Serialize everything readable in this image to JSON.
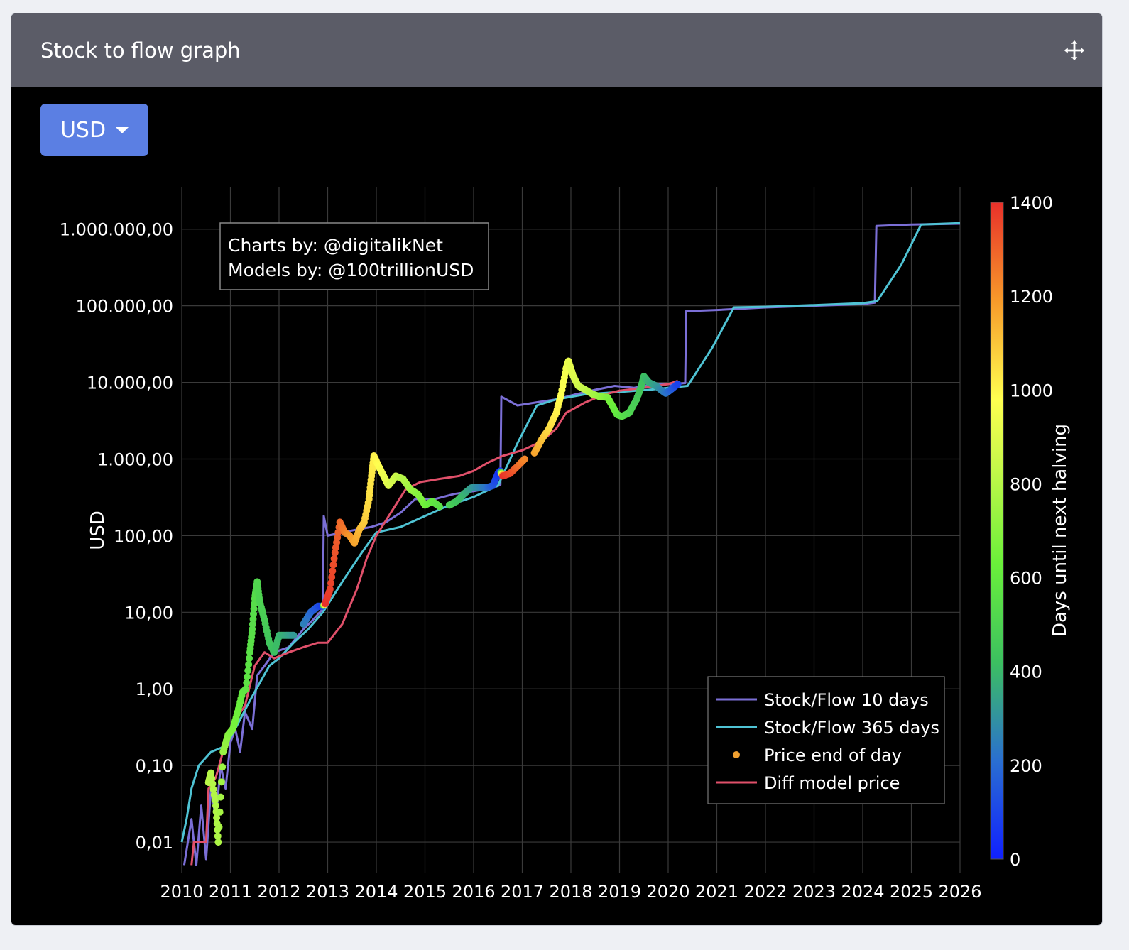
{
  "header": {
    "title": "Stock to flow graph",
    "move_icon": "move-arrows-icon"
  },
  "currency": {
    "selected": "USD",
    "options": [
      "USD"
    ]
  },
  "colors": {
    "header_bg": "#5b5c67",
    "button_bg": "#5b7fe3",
    "sf10": "#7b6fd6",
    "sf365": "#4fc3d4",
    "diff": "#e0506a",
    "grid": "#3a3a3a"
  },
  "chart_data": {
    "type": "line",
    "ylabel": "USD",
    "y_scale": "log",
    "ylim": [
      0.004,
      3500000
    ],
    "xlim": [
      2010,
      2026
    ],
    "x_ticks": [
      "2010",
      "2011",
      "2012",
      "2013",
      "2014",
      "2015",
      "2016",
      "2017",
      "2018",
      "2019",
      "2020",
      "2021",
      "2022",
      "2023",
      "2024",
      "2025",
      "2026"
    ],
    "y_ticks": [
      {
        "value": 0.01,
        "label": "0,01"
      },
      {
        "value": 0.1,
        "label": "0,10"
      },
      {
        "value": 1,
        "label": "1,00"
      },
      {
        "value": 10,
        "label": "10,00"
      },
      {
        "value": 100,
        "label": "100,00"
      },
      {
        "value": 1000,
        "label": "1.000,00"
      },
      {
        "value": 10000,
        "label": "10.000,00"
      },
      {
        "value": 100000,
        "label": "100.000,00"
      },
      {
        "value": 1000000,
        "label": "1.000.000,00"
      }
    ],
    "annotation": [
      "Charts by: @digitalikNet",
      "Models by: @100trillionUSD"
    ],
    "legend": {
      "placement": "bottom-right",
      "items": [
        "Stock/Flow 10 days",
        "Stock/Flow 365 days",
        "Price end of day",
        "Diff model price"
      ]
    },
    "colorbar": {
      "title": "Days until next halving",
      "range": [
        0,
        1400
      ],
      "ticks": [
        "0",
        "200",
        "400",
        "600",
        "800",
        "1000",
        "1200",
        "1400"
      ]
    },
    "series": [
      {
        "name": "Stock/Flow 10 days",
        "points": [
          [
            2010.05,
            0.005
          ],
          [
            2010.2,
            0.02
          ],
          [
            2010.3,
            0.005
          ],
          [
            2010.4,
            0.03
          ],
          [
            2010.5,
            0.006
          ],
          [
            2010.6,
            0.05
          ],
          [
            2010.7,
            0.02
          ],
          [
            2010.8,
            0.1
          ],
          [
            2010.9,
            0.05
          ],
          [
            2011.0,
            0.2
          ],
          [
            2011.1,
            0.3
          ],
          [
            2011.2,
            0.15
          ],
          [
            2011.3,
            0.5
          ],
          [
            2011.45,
            0.3
          ],
          [
            2011.55,
            1.5
          ],
          [
            2011.7,
            2
          ],
          [
            2011.9,
            3
          ],
          [
            2012.2,
            3.5
          ],
          [
            2012.5,
            6
          ],
          [
            2012.7,
            8
          ],
          [
            2012.9,
            11
          ],
          [
            2012.92,
            180
          ],
          [
            2013.0,
            100
          ],
          [
            2013.3,
            110
          ],
          [
            2013.6,
            120
          ],
          [
            2013.9,
            130
          ],
          [
            2014.2,
            150
          ],
          [
            2014.5,
            200
          ],
          [
            2014.8,
            300
          ],
          [
            2015.2,
            300
          ],
          [
            2015.6,
            350
          ],
          [
            2016.0,
            380
          ],
          [
            2016.4,
            420
          ],
          [
            2016.55,
            460
          ],
          [
            2016.57,
            6500
          ],
          [
            2016.9,
            5000
          ],
          [
            2017.3,
            5500
          ],
          [
            2017.7,
            6000
          ],
          [
            2018.1,
            7000
          ],
          [
            2018.5,
            8000
          ],
          [
            2018.9,
            9000
          ],
          [
            2019.3,
            8500
          ],
          [
            2019.7,
            9500
          ],
          [
            2020.1,
            9500
          ],
          [
            2020.35,
            9800
          ],
          [
            2020.37,
            85000
          ],
          [
            2021.0,
            88000
          ],
          [
            2022.0,
            95000
          ],
          [
            2023.0,
            100000
          ],
          [
            2024.0,
            105000
          ],
          [
            2024.25,
            110000
          ],
          [
            2024.28,
            1100000
          ],
          [
            2025.0,
            1150000
          ],
          [
            2026.0,
            1180000
          ]
        ]
      },
      {
        "name": "Stock/Flow 365 days",
        "points": [
          [
            2010.0,
            0.01
          ],
          [
            2010.1,
            0.02
          ],
          [
            2010.2,
            0.05
          ],
          [
            2010.35,
            0.1
          ],
          [
            2010.6,
            0.15
          ],
          [
            2010.9,
            0.18
          ],
          [
            2011.1,
            0.3
          ],
          [
            2011.4,
            0.7
          ],
          [
            2011.8,
            2
          ],
          [
            2012.0,
            2.5
          ],
          [
            2012.3,
            4
          ],
          [
            2012.6,
            6
          ],
          [
            2012.9,
            10
          ],
          [
            2013.3,
            25
          ],
          [
            2013.7,
            60
          ],
          [
            2014.0,
            110
          ],
          [
            2014.5,
            130
          ],
          [
            2015.0,
            180
          ],
          [
            2015.5,
            250
          ],
          [
            2016.0,
            320
          ],
          [
            2016.5,
            450
          ],
          [
            2016.9,
            1600
          ],
          [
            2017.3,
            5000
          ],
          [
            2017.7,
            6000
          ],
          [
            2018.3,
            7000
          ],
          [
            2019.0,
            7500
          ],
          [
            2019.6,
            8000
          ],
          [
            2020.0,
            8500
          ],
          [
            2020.4,
            9000
          ],
          [
            2020.9,
            28000
          ],
          [
            2021.35,
            95000
          ],
          [
            2022.0,
            97000
          ],
          [
            2023.0,
            102000
          ],
          [
            2024.0,
            108000
          ],
          [
            2024.3,
            115000
          ],
          [
            2024.8,
            350000
          ],
          [
            2025.2,
            1150000
          ],
          [
            2026.0,
            1200000
          ]
        ]
      },
      {
        "name": "Diff model price",
        "points": [
          [
            2010.2,
            0.005
          ],
          [
            2010.25,
            0.01
          ],
          [
            2010.5,
            0.01
          ],
          [
            2010.55,
            0.05
          ],
          [
            2010.7,
            0.07
          ],
          [
            2010.9,
            0.2
          ],
          [
            2011.1,
            0.4
          ],
          [
            2011.3,
            0.6
          ],
          [
            2011.5,
            2
          ],
          [
            2011.7,
            3
          ],
          [
            2011.9,
            2.5
          ],
          [
            2012.2,
            3
          ],
          [
            2012.5,
            3.5
          ],
          [
            2012.8,
            4
          ],
          [
            2013.0,
            4
          ],
          [
            2013.3,
            7
          ],
          [
            2013.6,
            20
          ],
          [
            2013.8,
            50
          ],
          [
            2014.0,
            100
          ],
          [
            2014.3,
            200
          ],
          [
            2014.6,
            400
          ],
          [
            2014.9,
            500
          ],
          [
            2015.3,
            550
          ],
          [
            2015.7,
            600
          ],
          [
            2016.0,
            700
          ],
          [
            2016.3,
            900
          ],
          [
            2016.6,
            1100
          ],
          [
            2017.0,
            1300
          ],
          [
            2017.4,
            1700
          ],
          [
            2017.7,
            2500
          ],
          [
            2017.9,
            4000
          ],
          [
            2018.3,
            5500
          ],
          [
            2018.7,
            7000
          ],
          [
            2019.0,
            7800
          ],
          [
            2019.5,
            8500
          ],
          [
            2020.0,
            9500
          ],
          [
            2020.2,
            10500
          ]
        ]
      },
      {
        "name": "Price end of day",
        "points": [
          [
            2010.55,
            0.06,
            810
          ],
          [
            2010.6,
            0.08,
            800
          ],
          [
            2010.7,
            0.03,
            790
          ],
          [
            2010.75,
            0.01,
            780
          ],
          [
            2010.85,
            0.15,
            740
          ],
          [
            2010.95,
            0.25,
            700
          ],
          [
            2011.05,
            0.3,
            670
          ],
          [
            2011.15,
            0.5,
            640
          ],
          [
            2011.25,
            0.9,
            600
          ],
          [
            2011.32,
            1.0,
            580
          ],
          [
            2011.4,
            3,
            560
          ],
          [
            2011.45,
            6,
            550
          ],
          [
            2011.5,
            15,
            540
          ],
          [
            2011.55,
            25,
            520
          ],
          [
            2011.6,
            14,
            500
          ],
          [
            2011.7,
            8,
            480
          ],
          [
            2011.8,
            4,
            440
          ],
          [
            2011.9,
            3,
            420
          ],
          [
            2012.0,
            5,
            400
          ],
          [
            2012.15,
            5,
            360
          ],
          [
            2012.3,
            5,
            320
          ],
          [
            2012.5,
            7,
            260
          ],
          [
            2012.65,
            10,
            200
          ],
          [
            2012.8,
            12,
            130
          ],
          [
            2012.9,
            12,
            80
          ],
          [
            2012.95,
            13,
            1400
          ],
          [
            2013.05,
            20,
            1370
          ],
          [
            2013.15,
            60,
            1330
          ],
          [
            2013.25,
            150,
            1290
          ],
          [
            2013.35,
            110,
            1250
          ],
          [
            2013.45,
            100,
            1200
          ],
          [
            2013.55,
            80,
            1170
          ],
          [
            2013.65,
            120,
            1130
          ],
          [
            2013.75,
            150,
            1090
          ],
          [
            2013.85,
            300,
            1050
          ],
          [
            2013.9,
            600,
            1030
          ],
          [
            2013.95,
            1100,
            1010
          ],
          [
            2014.05,
            800,
            980
          ],
          [
            2014.15,
            600,
            940
          ],
          [
            2014.25,
            450,
            900
          ],
          [
            2014.4,
            600,
            850
          ],
          [
            2014.55,
            550,
            800
          ],
          [
            2014.7,
            400,
            750
          ],
          [
            2014.85,
            350,
            700
          ],
          [
            2015.0,
            250,
            650
          ],
          [
            2015.15,
            280,
            600
          ],
          [
            2015.3,
            240,
            560
          ],
          [
            2015.5,
            250,
            500
          ],
          [
            2015.65,
            280,
            440
          ],
          [
            2015.8,
            350,
            390
          ],
          [
            2015.95,
            420,
            330
          ],
          [
            2016.1,
            430,
            280
          ],
          [
            2016.25,
            420,
            230
          ],
          [
            2016.4,
            450,
            150
          ],
          [
            2016.5,
            650,
            60
          ],
          [
            2016.55,
            700,
            20
          ],
          [
            2016.6,
            600,
            1400
          ],
          [
            2016.75,
            650,
            1350
          ],
          [
            2016.9,
            800,
            1290
          ],
          [
            2017.05,
            1000,
            1230
          ],
          [
            2017.25,
            1200,
            1170
          ],
          [
            2017.4,
            1800,
            1110
          ],
          [
            2017.55,
            2500,
            1060
          ],
          [
            2017.7,
            4000,
            1010
          ],
          [
            2017.8,
            7000,
            980
          ],
          [
            2017.9,
            15000,
            950
          ],
          [
            2017.95,
            19000,
            930
          ],
          [
            2018.05,
            12000,
            900
          ],
          [
            2018.15,
            9000,
            870
          ],
          [
            2018.3,
            8000,
            830
          ],
          [
            2018.45,
            7000,
            780
          ],
          [
            2018.6,
            6500,
            730
          ],
          [
            2018.75,
            6400,
            680
          ],
          [
            2018.85,
            5000,
            640
          ],
          [
            2018.95,
            3800,
            600
          ],
          [
            2019.05,
            3600,
            560
          ],
          [
            2019.2,
            4000,
            510
          ],
          [
            2019.35,
            6000,
            470
          ],
          [
            2019.45,
            9000,
            440
          ],
          [
            2019.5,
            12000,
            420
          ],
          [
            2019.6,
            10000,
            380
          ],
          [
            2019.75,
            9000,
            330
          ],
          [
            2019.85,
            8000,
            280
          ],
          [
            2019.95,
            7200,
            230
          ],
          [
            2020.05,
            8000,
            180
          ],
          [
            2020.15,
            9000,
            120
          ],
          [
            2020.2,
            9500,
            90
          ]
        ]
      }
    ]
  }
}
